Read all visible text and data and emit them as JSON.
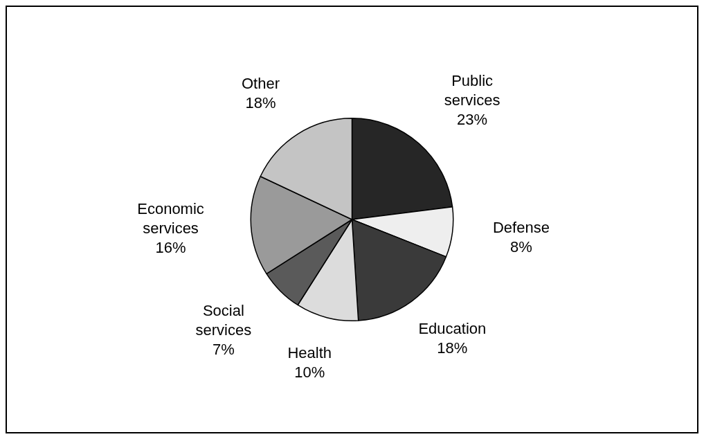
{
  "chart_data": {
    "type": "pie",
    "categories": [
      "Public services",
      "Defense",
      "Education",
      "Health",
      "Social services",
      "Economic services",
      "Other"
    ],
    "values": [
      23,
      8,
      18,
      10,
      7,
      16,
      18
    ],
    "colors": [
      "#262626",
      "#eeeeee",
      "#3a3a3a",
      "#dcdcdc",
      "#5a5a5a",
      "#9a9a9a",
      "#c4c4c4"
    ],
    "value_labels": [
      "23%",
      "8%",
      "18%",
      "10%",
      "7%",
      "16%",
      "18%"
    ],
    "legend": false
  }
}
